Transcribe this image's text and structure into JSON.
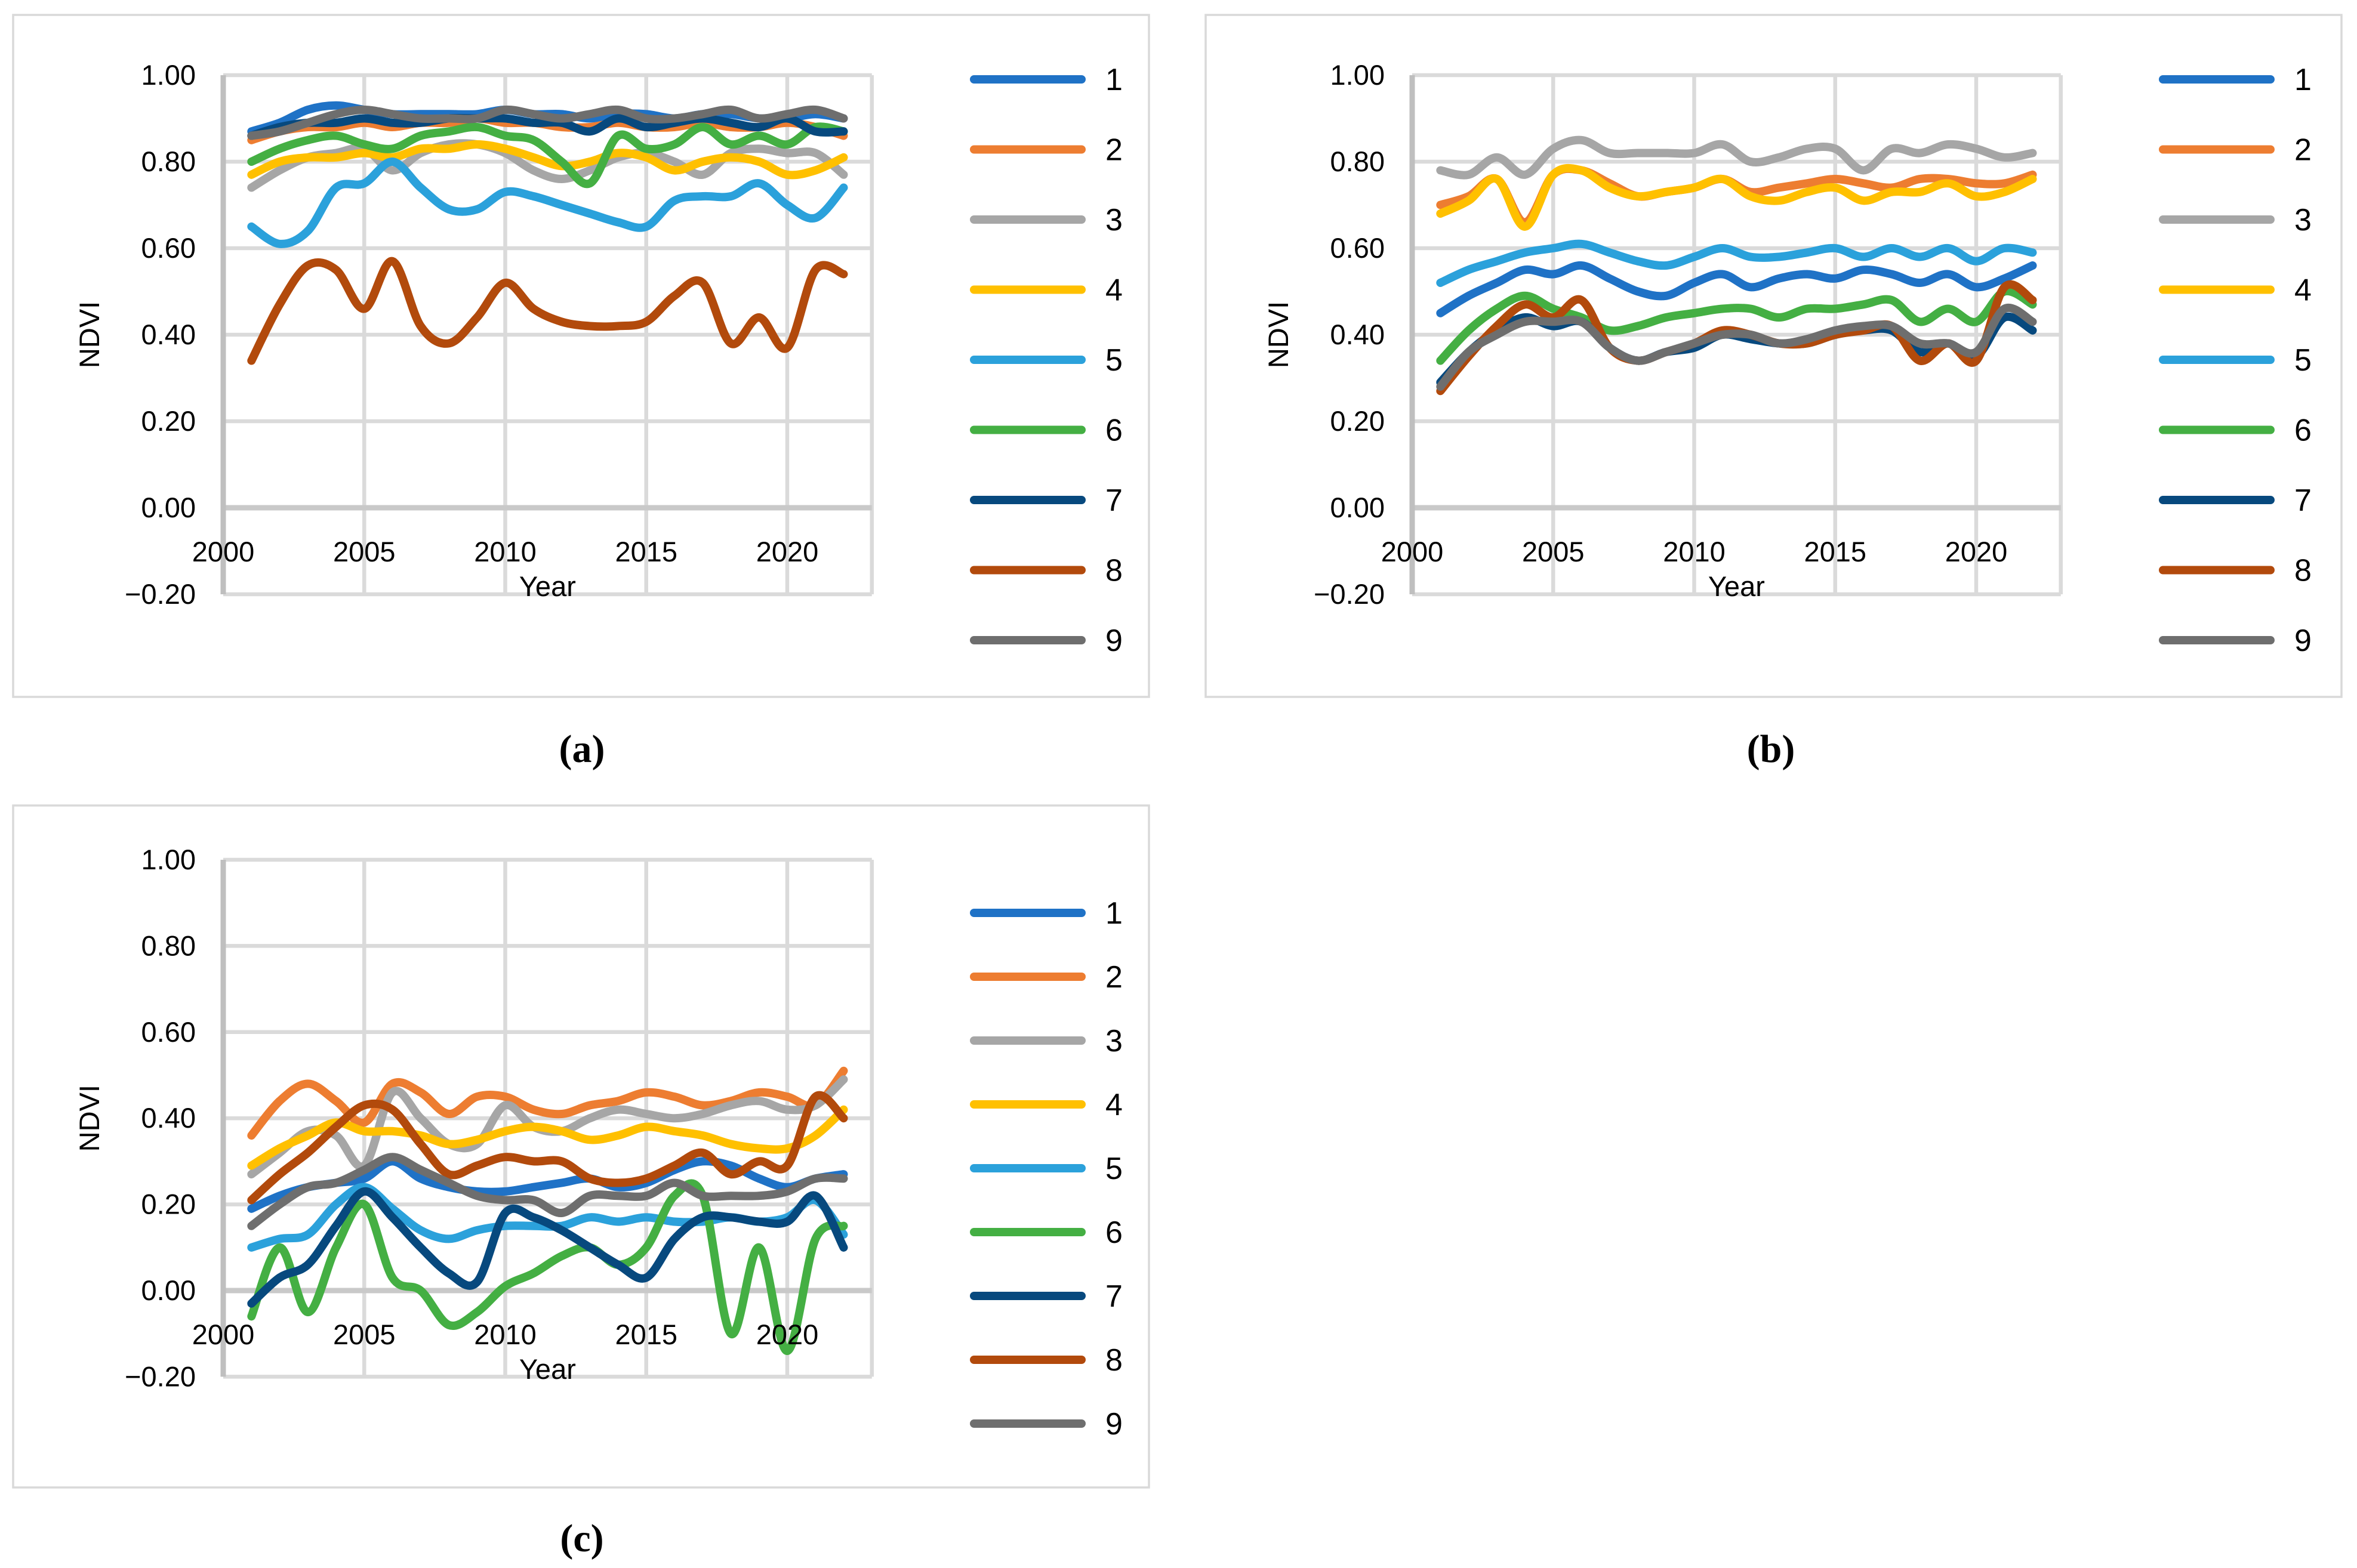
{
  "figure": {
    "captions": {
      "a": "(a)",
      "b": "(b)",
      "c": "(c)"
    },
    "axis_titles": {
      "x": "Year",
      "y": "NDVI"
    },
    "legend_labels": [
      "1",
      "2",
      "3",
      "4",
      "5",
      "6",
      "7",
      "8",
      "9"
    ],
    "series_colors": {
      "1": "#1F72C6",
      "2": "#ED7D31",
      "3": "#A6A6A6",
      "4": "#FFC000",
      "5": "#2BA1DB",
      "6": "#44AF43",
      "7": "#07497E",
      "8": "#B24A0C",
      "9": "#6E6E6E"
    },
    "gridline_color": "#DADADA",
    "axisline_color": "#BFBFBF",
    "panel_border_color": "#D9D9D9"
  },
  "chart_data": [
    {
      "panel": "a",
      "type": "line",
      "title": "",
      "xlabel": "Year",
      "ylabel": "NDVI",
      "xlim": [
        2000,
        2023
      ],
      "ylim": [
        -0.2,
        1.0
      ],
      "xticks": [
        2000,
        2005,
        2010,
        2015,
        2020
      ],
      "yticks": [
        1.0,
        0.8,
        0.6,
        0.4,
        0.2,
        0.0,
        -0.2
      ],
      "ytick_labels": [
        "1.00",
        "0.80",
        "0.60",
        "0.40",
        "0.20",
        "0.00",
        "−0.20"
      ],
      "grid": true,
      "legend_position": "right",
      "x": [
        2001,
        2002,
        2003,
        2004,
        2005,
        2006,
        2007,
        2008,
        2009,
        2010,
        2011,
        2012,
        2013,
        2014,
        2015,
        2016,
        2017,
        2018,
        2019,
        2020,
        2021,
        2022
      ],
      "series": [
        {
          "name": "1",
          "color": "#1F72C6",
          "values": [
            0.87,
            0.89,
            0.92,
            0.93,
            0.92,
            0.91,
            0.91,
            0.91,
            0.91,
            0.92,
            0.91,
            0.91,
            0.9,
            0.91,
            0.91,
            0.9,
            0.91,
            0.91,
            0.9,
            0.9,
            0.91,
            0.9
          ]
        },
        {
          "name": "2",
          "color": "#ED7D31",
          "values": [
            0.85,
            0.87,
            0.88,
            0.88,
            0.89,
            0.88,
            0.89,
            0.89,
            0.9,
            0.89,
            0.89,
            0.88,
            0.88,
            0.89,
            0.88,
            0.88,
            0.89,
            0.88,
            0.88,
            0.89,
            0.88,
            0.86
          ]
        },
        {
          "name": "3",
          "color": "#A6A6A6",
          "values": [
            0.74,
            0.78,
            0.81,
            0.82,
            0.83,
            0.78,
            0.82,
            0.84,
            0.84,
            0.82,
            0.78,
            0.76,
            0.78,
            0.81,
            0.82,
            0.8,
            0.77,
            0.82,
            0.83,
            0.82,
            0.82,
            0.77
          ]
        },
        {
          "name": "4",
          "color": "#FFC000",
          "values": [
            0.77,
            0.8,
            0.81,
            0.81,
            0.82,
            0.81,
            0.83,
            0.83,
            0.84,
            0.83,
            0.81,
            0.79,
            0.8,
            0.82,
            0.81,
            0.78,
            0.8,
            0.81,
            0.8,
            0.77,
            0.78,
            0.81
          ]
        },
        {
          "name": "5",
          "color": "#2BA1DB",
          "values": [
            0.65,
            0.61,
            0.64,
            0.74,
            0.75,
            0.8,
            0.74,
            0.69,
            0.69,
            0.73,
            0.72,
            0.7,
            0.68,
            0.66,
            0.65,
            0.71,
            0.72,
            0.72,
            0.75,
            0.7,
            0.67,
            0.74
          ]
        },
        {
          "name": "6",
          "color": "#44AF43",
          "values": [
            0.8,
            0.83,
            0.85,
            0.86,
            0.84,
            0.83,
            0.86,
            0.87,
            0.88,
            0.86,
            0.85,
            0.8,
            0.75,
            0.86,
            0.83,
            0.84,
            0.88,
            0.84,
            0.86,
            0.84,
            0.88,
            0.87
          ]
        },
        {
          "name": "7",
          "color": "#07497E",
          "values": [
            0.86,
            0.88,
            0.89,
            0.89,
            0.9,
            0.89,
            0.89,
            0.9,
            0.9,
            0.9,
            0.89,
            0.89,
            0.87,
            0.9,
            0.88,
            0.89,
            0.9,
            0.89,
            0.88,
            0.9,
            0.87,
            0.87
          ]
        },
        {
          "name": "8",
          "color": "#B24A0C",
          "values": [
            0.34,
            0.47,
            0.56,
            0.55,
            0.46,
            0.57,
            0.42,
            0.38,
            0.44,
            0.52,
            0.46,
            0.43,
            0.42,
            0.42,
            0.43,
            0.49,
            0.52,
            0.38,
            0.44,
            0.37,
            0.55,
            0.54
          ]
        },
        {
          "name": "9",
          "color": "#6E6E6E",
          "values": [
            0.86,
            0.87,
            0.89,
            0.91,
            0.92,
            0.91,
            0.9,
            0.9,
            0.9,
            0.92,
            0.91,
            0.9,
            0.91,
            0.92,
            0.9,
            0.9,
            0.91,
            0.92,
            0.9,
            0.91,
            0.92,
            0.9
          ]
        }
      ]
    },
    {
      "panel": "b",
      "type": "line",
      "title": "",
      "xlabel": "Year",
      "ylabel": "NDVI",
      "xlim": [
        2000,
        2023
      ],
      "ylim": [
        -0.2,
        1.0
      ],
      "xticks": [
        2000,
        2005,
        2010,
        2015,
        2020
      ],
      "yticks": [
        1.0,
        0.8,
        0.6,
        0.4,
        0.2,
        0.0,
        -0.2
      ],
      "ytick_labels": [
        "1.00",
        "0.80",
        "0.60",
        "0.40",
        "0.20",
        "0.00",
        "−0.20"
      ],
      "grid": true,
      "legend_position": "right",
      "x": [
        2001,
        2002,
        2003,
        2004,
        2005,
        2006,
        2007,
        2008,
        2009,
        2010,
        2011,
        2012,
        2013,
        2014,
        2015,
        2016,
        2017,
        2018,
        2019,
        2020,
        2021,
        2022
      ],
      "series": [
        {
          "name": "1",
          "color": "#1F72C6",
          "values": [
            0.45,
            0.49,
            0.52,
            0.55,
            0.54,
            0.56,
            0.53,
            0.5,
            0.49,
            0.52,
            0.54,
            0.51,
            0.53,
            0.54,
            0.53,
            0.55,
            0.54,
            0.52,
            0.54,
            0.51,
            0.53,
            0.56
          ]
        },
        {
          "name": "2",
          "color": "#ED7D31",
          "values": [
            0.7,
            0.72,
            0.76,
            0.66,
            0.77,
            0.78,
            0.75,
            0.72,
            0.73,
            0.74,
            0.76,
            0.73,
            0.74,
            0.75,
            0.76,
            0.75,
            0.74,
            0.76,
            0.76,
            0.75,
            0.75,
            0.77
          ]
        },
        {
          "name": "3",
          "color": "#A6A6A6",
          "values": [
            0.78,
            0.77,
            0.81,
            0.77,
            0.83,
            0.85,
            0.82,
            0.82,
            0.82,
            0.82,
            0.84,
            0.8,
            0.81,
            0.83,
            0.83,
            0.78,
            0.83,
            0.82,
            0.84,
            0.83,
            0.81,
            0.82
          ]
        },
        {
          "name": "4",
          "color": "#FFC000",
          "values": [
            0.68,
            0.71,
            0.76,
            0.65,
            0.77,
            0.78,
            0.74,
            0.72,
            0.73,
            0.74,
            0.76,
            0.72,
            0.71,
            0.73,
            0.74,
            0.71,
            0.73,
            0.73,
            0.75,
            0.72,
            0.73,
            0.76
          ]
        },
        {
          "name": "5",
          "color": "#2BA1DB",
          "values": [
            0.52,
            0.55,
            0.57,
            0.59,
            0.6,
            0.61,
            0.59,
            0.57,
            0.56,
            0.58,
            0.6,
            0.58,
            0.58,
            0.59,
            0.6,
            0.58,
            0.6,
            0.58,
            0.6,
            0.57,
            0.6,
            0.59
          ]
        },
        {
          "name": "6",
          "color": "#44AF43",
          "values": [
            0.34,
            0.41,
            0.46,
            0.49,
            0.46,
            0.44,
            0.41,
            0.42,
            0.44,
            0.45,
            0.46,
            0.46,
            0.44,
            0.46,
            0.46,
            0.47,
            0.48,
            0.43,
            0.46,
            0.43,
            0.5,
            0.47
          ]
        },
        {
          "name": "7",
          "color": "#07497E",
          "values": [
            0.29,
            0.36,
            0.41,
            0.44,
            0.42,
            0.43,
            0.37,
            0.34,
            0.36,
            0.37,
            0.4,
            0.39,
            0.38,
            0.38,
            0.4,
            0.41,
            0.41,
            0.36,
            0.38,
            0.35,
            0.44,
            0.41
          ]
        },
        {
          "name": "8",
          "color": "#B24A0C",
          "values": [
            0.27,
            0.35,
            0.42,
            0.47,
            0.44,
            0.48,
            0.37,
            0.34,
            0.36,
            0.38,
            0.41,
            0.4,
            0.38,
            0.38,
            0.4,
            0.41,
            0.42,
            0.34,
            0.38,
            0.34,
            0.51,
            0.48
          ]
        },
        {
          "name": "9",
          "color": "#6E6E6E",
          "values": [
            0.28,
            0.36,
            0.4,
            0.43,
            0.43,
            0.43,
            0.37,
            0.34,
            0.36,
            0.38,
            0.4,
            0.4,
            0.38,
            0.39,
            0.41,
            0.42,
            0.42,
            0.38,
            0.38,
            0.36,
            0.46,
            0.43
          ]
        }
      ]
    },
    {
      "panel": "c",
      "type": "line",
      "title": "",
      "xlabel": "Year",
      "ylabel": "NDVI",
      "xlim": [
        2000,
        2023
      ],
      "ylim": [
        -0.2,
        1.0
      ],
      "xticks": [
        2000,
        2005,
        2010,
        2015,
        2020
      ],
      "yticks": [
        1.0,
        0.8,
        0.6,
        0.4,
        0.2,
        0.0,
        -0.2
      ],
      "ytick_labels": [
        "1.00",
        "0.80",
        "0.60",
        "0.40",
        "0.20",
        "0.00",
        "−0.20"
      ],
      "grid": true,
      "legend_position": "right",
      "x": [
        2001,
        2002,
        2003,
        2004,
        2005,
        2006,
        2007,
        2008,
        2009,
        2010,
        2011,
        2012,
        2013,
        2014,
        2015,
        2016,
        2017,
        2018,
        2019,
        2020,
        2021,
        2022
      ],
      "series": [
        {
          "name": "1",
          "color": "#1F72C6",
          "values": [
            0.19,
            0.22,
            0.24,
            0.25,
            0.26,
            0.3,
            0.26,
            0.24,
            0.23,
            0.23,
            0.24,
            0.25,
            0.26,
            0.24,
            0.25,
            0.28,
            0.3,
            0.29,
            0.26,
            0.24,
            0.26,
            0.27
          ]
        },
        {
          "name": "2",
          "color": "#ED7D31",
          "values": [
            0.36,
            0.44,
            0.48,
            0.44,
            0.39,
            0.48,
            0.46,
            0.41,
            0.45,
            0.45,
            0.42,
            0.41,
            0.43,
            0.44,
            0.46,
            0.45,
            0.43,
            0.44,
            0.46,
            0.45,
            0.43,
            0.51
          ]
        },
        {
          "name": "3",
          "color": "#A6A6A6",
          "values": [
            0.27,
            0.32,
            0.37,
            0.36,
            0.29,
            0.46,
            0.4,
            0.34,
            0.34,
            0.43,
            0.38,
            0.37,
            0.4,
            0.42,
            0.41,
            0.4,
            0.41,
            0.43,
            0.44,
            0.42,
            0.43,
            0.49
          ]
        },
        {
          "name": "4",
          "color": "#FFC000",
          "values": [
            0.29,
            0.33,
            0.36,
            0.39,
            0.37,
            0.37,
            0.36,
            0.34,
            0.35,
            0.37,
            0.38,
            0.37,
            0.35,
            0.36,
            0.38,
            0.37,
            0.36,
            0.34,
            0.33,
            0.33,
            0.36,
            0.42
          ]
        },
        {
          "name": "5",
          "color": "#2BA1DB",
          "values": [
            0.1,
            0.12,
            0.13,
            0.2,
            0.24,
            0.19,
            0.14,
            0.12,
            0.14,
            0.15,
            0.15,
            0.15,
            0.17,
            0.16,
            0.17,
            0.16,
            0.16,
            0.17,
            0.16,
            0.17,
            0.21,
            0.13
          ]
        },
        {
          "name": "6",
          "color": "#44AF43",
          "values": [
            -0.06,
            0.1,
            -0.05,
            0.1,
            0.2,
            0.03,
            0.0,
            -0.08,
            -0.05,
            0.01,
            0.04,
            0.08,
            0.1,
            0.06,
            0.1,
            0.22,
            0.22,
            -0.1,
            0.1,
            -0.14,
            0.12,
            0.15
          ]
        },
        {
          "name": "7",
          "color": "#07497E",
          "values": [
            -0.03,
            0.03,
            0.06,
            0.15,
            0.23,
            0.17,
            0.1,
            0.04,
            0.02,
            0.18,
            0.17,
            0.14,
            0.1,
            0.06,
            0.03,
            0.12,
            0.17,
            0.17,
            0.16,
            0.16,
            0.22,
            0.1
          ]
        },
        {
          "name": "8",
          "color": "#B24A0C",
          "values": [
            0.21,
            0.27,
            0.32,
            0.38,
            0.43,
            0.42,
            0.34,
            0.27,
            0.29,
            0.31,
            0.3,
            0.3,
            0.26,
            0.25,
            0.26,
            0.29,
            0.32,
            0.27,
            0.3,
            0.29,
            0.45,
            0.4
          ]
        },
        {
          "name": "9",
          "color": "#6E6E6E",
          "values": [
            0.15,
            0.2,
            0.24,
            0.25,
            0.28,
            0.31,
            0.28,
            0.25,
            0.22,
            0.21,
            0.21,
            0.18,
            0.22,
            0.22,
            0.22,
            0.25,
            0.22,
            0.22,
            0.22,
            0.23,
            0.26,
            0.26
          ]
        }
      ]
    }
  ]
}
